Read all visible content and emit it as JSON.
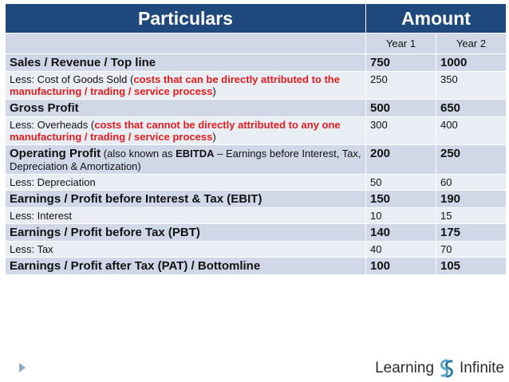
{
  "header": {
    "particulars": "Particulars",
    "amount": "Amount"
  },
  "years": [
    "Year 1",
    "Year 2"
  ],
  "rows": [
    {
      "style": "bold",
      "label": [
        {
          "t": "Sales / Revenue / Top line"
        }
      ],
      "y1": "750",
      "y2": "1000"
    },
    {
      "style": "light",
      "label": [
        {
          "t": "Less: Cost of Goods Sold ("
        },
        {
          "t": "costs that can be directly attributed to the manufacturing / trading / service process",
          "c": "red"
        },
        {
          "t": ")"
        }
      ],
      "y1": "250",
      "y2": "350"
    },
    {
      "style": "bold",
      "label": [
        {
          "t": "Gross Profit"
        }
      ],
      "y1": "500",
      "y2": "650"
    },
    {
      "style": "light",
      "label": [
        {
          "t": "Less: Overheads ("
        },
        {
          "t": "costs that cannot be directly attributed to any one manufacturing / trading / service process",
          "c": "red"
        },
        {
          "t": ")"
        }
      ],
      "y1": "300",
      "y2": "400"
    },
    {
      "style": "mixed",
      "label": [
        {
          "t": "Operating Profit",
          "c": "big"
        },
        {
          "t": " (also known as "
        },
        {
          "t": "EBITDA",
          "c": "b"
        },
        {
          "t": " – Earnings before Interest, Tax, Depreciation & Amortization)"
        }
      ],
      "y1": "200",
      "y2": "250"
    },
    {
      "style": "light",
      "label": [
        {
          "t": "Less: Depreciation"
        }
      ],
      "y1": "50",
      "y2": "60"
    },
    {
      "style": "bold",
      "label": [
        {
          "t": "Earnings / Profit before Interest & Tax (EBIT)"
        }
      ],
      "y1": "150",
      "y2": "190"
    },
    {
      "style": "light",
      "label": [
        {
          "t": "Less: Interest"
        }
      ],
      "y1": "10",
      "y2": "15"
    },
    {
      "style": "bold",
      "label": [
        {
          "t": "Earnings / Profit before Tax (PBT)"
        }
      ],
      "y1": "140",
      "y2": "175"
    },
    {
      "style": "light",
      "label": [
        {
          "t": "Less: Tax"
        }
      ],
      "y1": "40",
      "y2": "70"
    },
    {
      "style": "bold",
      "label": [
        {
          "t": "Earnings / Profit after Tax (PAT) / Bottomline"
        }
      ],
      "y1": "100",
      "y2": "105"
    }
  ],
  "logo": {
    "left": "Learning",
    "right": "Infinite",
    "icon": "infinity-swirl-icon",
    "color": "#5aa9c9"
  }
}
